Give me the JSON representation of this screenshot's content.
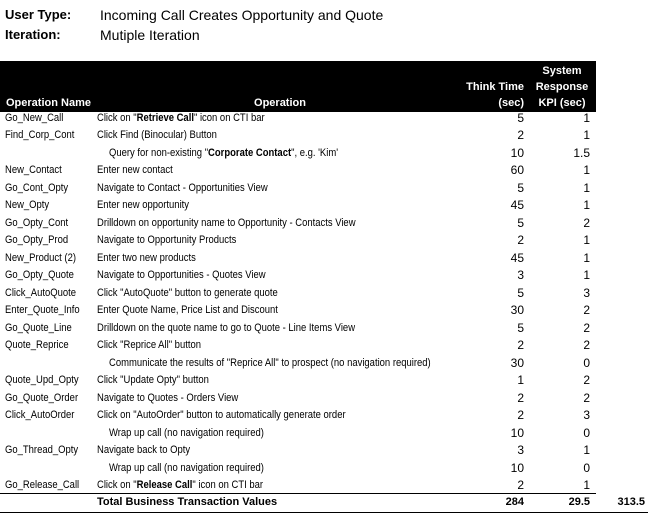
{
  "header": {
    "user_type_label": "User Type:",
    "user_type": "Incoming Call Creates Opportunity and Quote",
    "iteration_label": "Iteration:",
    "iteration": "Mutiple Iteration"
  },
  "table": {
    "columns": {
      "name": "Operation Name",
      "operation": "Operation",
      "think_time": [
        "Think Time",
        "(sec)"
      ],
      "kpi": [
        "System",
        "Response",
        "KPI (sec)"
      ]
    },
    "rows": [
      {
        "name": "Go_New_Call",
        "operation": [
          {
            "text": "Click on \""
          },
          {
            "text": "Retrieve Call",
            "bold": true
          },
          {
            "text": "\" icon on CTI bar"
          }
        ],
        "think_time": 5,
        "kpi": 1
      },
      {
        "name": "Find_Corp_Cont",
        "operation": "Click Find (Binocular) Button",
        "think_time": 2,
        "kpi": 1
      },
      {
        "indent": true,
        "operation": [
          {
            "text": "Query for non-existing \""
          },
          {
            "text": "Corporate Contact",
            "bold": true
          },
          {
            "text": "\", e.g. 'Kim'"
          }
        ],
        "think_time": 10,
        "kpi": 1.5
      },
      {
        "name": "New_Contact",
        "operation": "Enter new contact",
        "think_time": 60,
        "kpi": 1
      },
      {
        "name": "Go_Cont_Opty",
        "operation": "Navigate to Contact - Opportunities View",
        "think_time": 5,
        "kpi": 1
      },
      {
        "name": "New_Opty",
        "operation": "Enter new opportunity",
        "think_time": 45,
        "kpi": 1
      },
      {
        "name": "Go_Opty_Cont",
        "operation": "Drilldown on opportunity name to Opportunity - Contacts View",
        "think_time": 5,
        "kpi": 2
      },
      {
        "name": "Go_Opty_Prod",
        "operation": "Navigate to Opportunity Products",
        "think_time": 2,
        "kpi": 1
      },
      {
        "name": "New_Product (2)",
        "operation": "Enter two new products",
        "think_time": 45,
        "kpi": 1
      },
      {
        "name": "Go_Opty_Quote",
        "operation": "Navigate to Opportunities - Quotes View",
        "think_time": 3,
        "kpi": 1
      },
      {
        "name": "Click_AutoQuote",
        "operation": "Click \"AutoQuote\" button to generate quote",
        "think_time": 5,
        "kpi": 3
      },
      {
        "name": "Enter_Quote_Info",
        "operation": "Enter Quote Name, Price List and Discount",
        "think_time": 30,
        "kpi": 2
      },
      {
        "name": "Go_Quote_Line",
        "operation": "Drilldown on the quote name to go to Quote - Line Items View",
        "think_time": 5,
        "kpi": 2
      },
      {
        "name": "Quote_Reprice",
        "operation": "Click \"Reprice All\" button",
        "think_time": 2,
        "kpi": 2
      },
      {
        "indent": true,
        "operation": "Communicate the results of \"Reprice All\" to prospect (no navigation required)",
        "think_time": 30,
        "kpi": 0
      },
      {
        "name": "Quote_Upd_Opty",
        "operation": "Click \"Update Opty\" button",
        "think_time": 1,
        "kpi": 2
      },
      {
        "name": "Go_Quote_Order",
        "operation": "Navigate to Quotes - Orders View",
        "think_time": 2,
        "kpi": 2
      },
      {
        "name": "Click_AutoOrder",
        "operation": "Click on \"AutoOrder\" button to automatically generate order",
        "think_time": 2,
        "kpi": 3
      },
      {
        "indent": true,
        "operation": "Wrap up call (no navigation required)",
        "think_time": 10,
        "kpi": 0
      },
      {
        "name": "Go_Thread_Opty",
        "operation": "Navigate back to Opty",
        "think_time": 3,
        "kpi": 1
      },
      {
        "indent": true,
        "operation": "Wrap up call (no navigation required)",
        "think_time": 10,
        "kpi": 0
      },
      {
        "name": "Go_Release_Call",
        "operation": [
          {
            "text": "Click on \""
          },
          {
            "text": "Release Call",
            "bold": true
          },
          {
            "text": "\" icon on CTI bar"
          }
        ],
        "think_time": 2,
        "kpi": 1
      }
    ],
    "total": {
      "label": "Total Business Transaction Values",
      "think_time": 284,
      "kpi": 29.5,
      "grand": 313.5
    }
  }
}
